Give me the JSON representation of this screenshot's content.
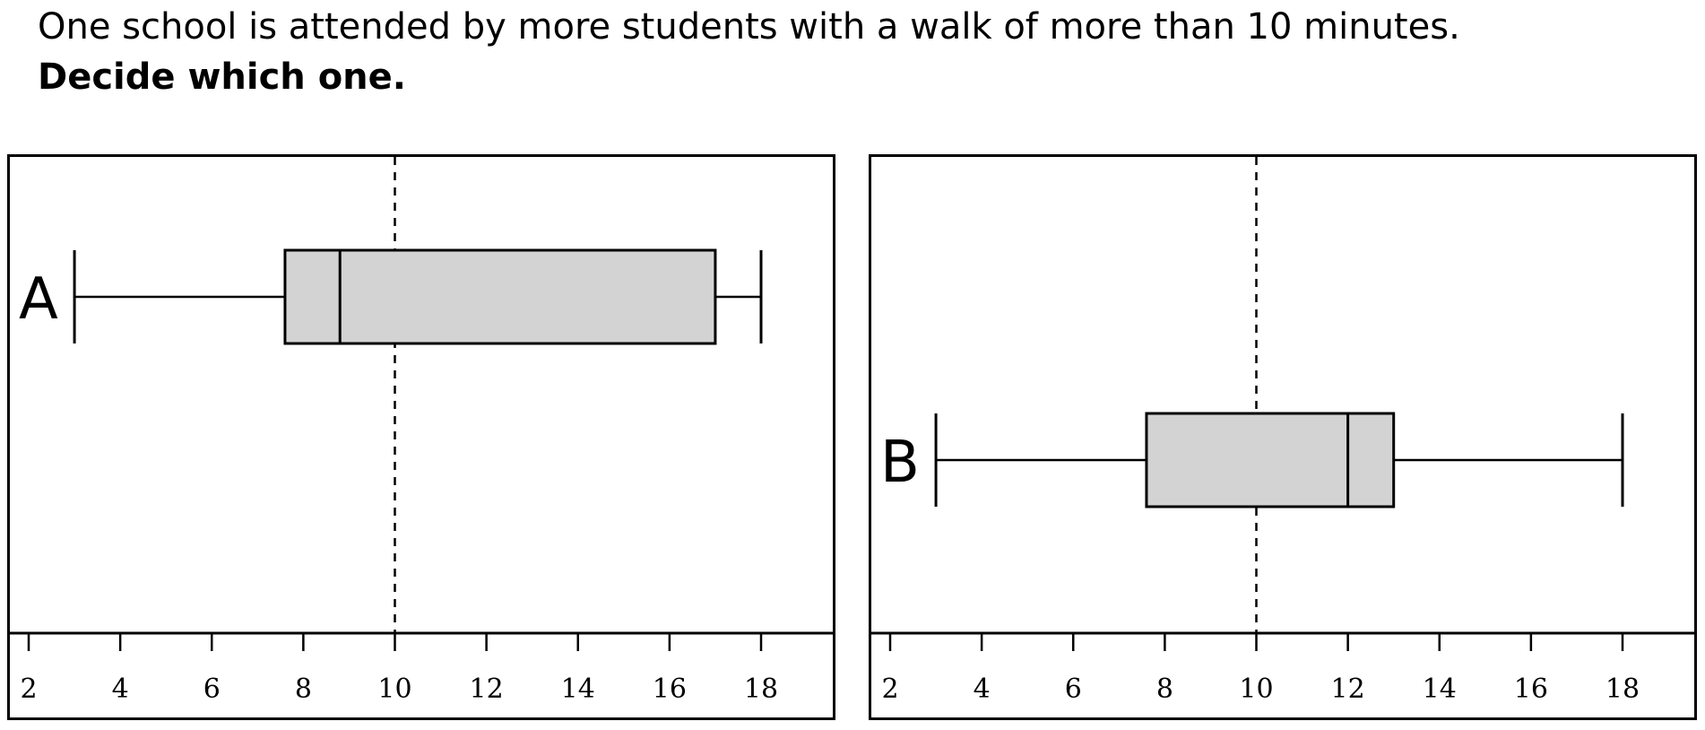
{
  "question": {
    "text": "One school is attended by more students with a walk of more than 10 minutes.",
    "instruction": "Decide which one."
  },
  "chart_data": [
    {
      "type": "boxplot",
      "label": "A",
      "axis": {
        "range": [
          2,
          18
        ],
        "ticks": [
          2,
          4,
          6,
          8,
          10,
          12,
          14,
          16,
          18
        ]
      },
      "reference_line": 10,
      "box": {
        "min": 3,
        "q1": 7.6,
        "median": 8.8,
        "q3": 17,
        "max": 18
      },
      "vertical_position": "top",
      "fill_color": "#d3d3d3"
    },
    {
      "type": "boxplot",
      "label": "B",
      "axis": {
        "range": [
          2,
          18
        ],
        "ticks": [
          2,
          4,
          6,
          8,
          10,
          12,
          14,
          16,
          18
        ]
      },
      "reference_line": 10,
      "box": {
        "min": 3,
        "q1": 7.6,
        "median": 12,
        "q3": 13,
        "max": 18
      },
      "vertical_position": "bottom",
      "fill_color": "#d3d3d3"
    }
  ]
}
